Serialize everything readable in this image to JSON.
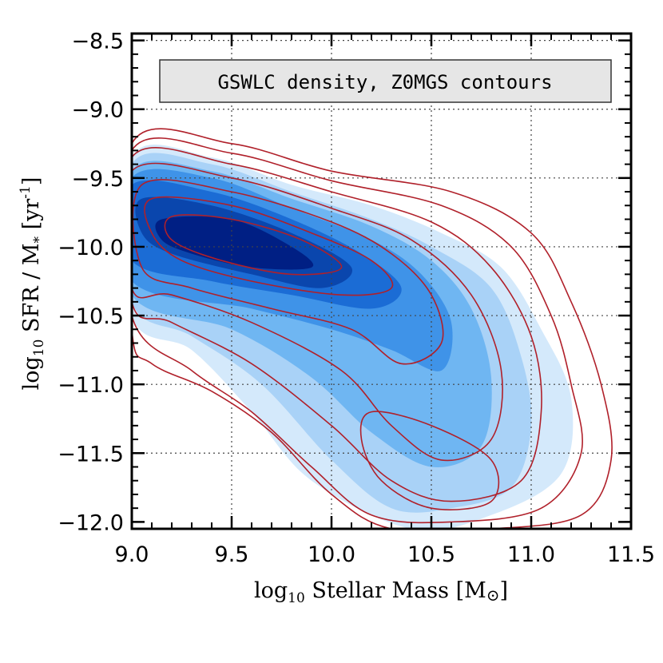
{
  "chart_data": {
    "type": "density-contour",
    "title": "",
    "legend_box": {
      "label": "GSWLC density, Z0MGS contours",
      "placement": "top-center"
    },
    "xlabel": {
      "prefix": "log",
      "sub": "10",
      "rest": " Stellar Mass [M",
      "sym": "⊙",
      "close": "]"
    },
    "ylabel": {
      "prefix": "log",
      "sub": "10",
      "rest": " SFR / M",
      "star": "*",
      "rest2": " [yr",
      "sup": "-1",
      "close": "]"
    },
    "xlim": [
      9.0,
      11.5
    ],
    "ylim": [
      -12.05,
      -8.45
    ],
    "xticks": [
      9.0,
      9.5,
      10.0,
      10.5,
      11.0,
      11.5
    ],
    "xtick_labels": [
      "9.0",
      "9.5",
      "10.0",
      "10.5",
      "11.0",
      "11.5"
    ],
    "yticks": [
      -12.0,
      -11.5,
      -11.0,
      -10.5,
      -10.0,
      -9.5,
      -9.0,
      -8.5
    ],
    "ytick_labels": [
      "−12.0",
      "−11.5",
      "−11.0",
      "−10.5",
      "−10.0",
      "−9.5",
      "−9.0",
      "−8.5"
    ],
    "grid": true,
    "density_colors": [
      "#d4e9fb",
      "#a9d2f7",
      "#6fb6f2",
      "#3f93e8",
      "#1b6cd5",
      "#0a46ad",
      "#001f84"
    ],
    "contour_color": "#b0202a",
    "density_levels": [
      [
        [
          9.0,
          -9.35
        ],
        [
          9.4,
          -9.35
        ],
        [
          9.8,
          -9.55
        ],
        [
          10.2,
          -9.7
        ],
        [
          10.55,
          -9.9
        ],
        [
          10.85,
          -10.15
        ],
        [
          11.05,
          -10.6
        ],
        [
          11.2,
          -11.1
        ],
        [
          11.15,
          -11.65
        ],
        [
          10.8,
          -11.95
        ],
        [
          10.4,
          -12.05
        ],
        [
          9.9,
          -11.7
        ],
        [
          9.6,
          -11.2
        ],
        [
          9.3,
          -10.75
        ],
        [
          9.0,
          -10.5
        ]
      ],
      [
        [
          9.0,
          -9.4
        ],
        [
          9.4,
          -9.4
        ],
        [
          9.8,
          -9.6
        ],
        [
          10.2,
          -9.8
        ],
        [
          10.5,
          -10.0
        ],
        [
          10.8,
          -10.3
        ],
        [
          10.95,
          -10.8
        ],
        [
          11.0,
          -11.3
        ],
        [
          10.9,
          -11.75
        ],
        [
          10.6,
          -11.9
        ],
        [
          10.3,
          -11.9
        ],
        [
          10.0,
          -11.55
        ],
        [
          9.65,
          -11.0
        ],
        [
          9.3,
          -10.65
        ],
        [
          9.0,
          -10.4
        ]
      ],
      [
        [
          9.0,
          -9.45
        ],
        [
          9.4,
          -9.45
        ],
        [
          9.8,
          -9.65
        ],
        [
          10.2,
          -9.85
        ],
        [
          10.5,
          -10.1
        ],
        [
          10.7,
          -10.45
        ],
        [
          10.8,
          -10.95
        ],
        [
          10.75,
          -11.45
        ],
        [
          10.5,
          -11.6
        ],
        [
          10.2,
          -11.35
        ],
        [
          9.9,
          -10.95
        ],
        [
          9.5,
          -10.6
        ],
        [
          9.0,
          -10.35
        ]
      ],
      [
        [
          9.0,
          -9.5
        ],
        [
          9.4,
          -9.5
        ],
        [
          9.8,
          -9.72
        ],
        [
          10.2,
          -9.95
        ],
        [
          10.45,
          -10.2
        ],
        [
          10.6,
          -10.55
        ],
        [
          10.55,
          -10.9
        ],
        [
          10.3,
          -10.75
        ],
        [
          10.0,
          -10.6
        ],
        [
          9.6,
          -10.45
        ],
        [
          9.0,
          -10.25
        ]
      ],
      [
        [
          9.0,
          -9.55
        ],
        [
          9.4,
          -9.6
        ],
        [
          9.8,
          -9.8
        ],
        [
          10.15,
          -10.05
        ],
        [
          10.35,
          -10.3
        ],
        [
          10.2,
          -10.45
        ],
        [
          9.8,
          -10.35
        ],
        [
          9.4,
          -10.25
        ],
        [
          9.0,
          -10.1
        ]
      ],
      [
        [
          9.05,
          -9.65
        ],
        [
          9.4,
          -9.7
        ],
        [
          9.8,
          -9.9
        ],
        [
          10.1,
          -10.15
        ],
        [
          9.95,
          -10.3
        ],
        [
          9.6,
          -10.2
        ],
        [
          9.2,
          -10.05
        ],
        [
          9.05,
          -9.9
        ]
      ],
      [
        [
          9.15,
          -9.8
        ],
        [
          9.5,
          -9.8
        ],
        [
          9.8,
          -10.0
        ],
        [
          9.9,
          -10.15
        ],
        [
          9.6,
          -10.15
        ],
        [
          9.3,
          -10.05
        ],
        [
          9.15,
          -9.95
        ]
      ]
    ],
    "contours": [
      [
        [
          9.0,
          -9.25
        ],
        [
          9.5,
          -9.25
        ],
        [
          10.0,
          -9.45
        ],
        [
          10.6,
          -9.6
        ],
        [
          11.0,
          -9.9
        ],
        [
          11.2,
          -10.4
        ],
        [
          11.35,
          -11.0
        ],
        [
          11.4,
          -11.55
        ],
        [
          11.25,
          -11.95
        ],
        [
          10.8,
          -12.05
        ],
        [
          10.3,
          -12.05
        ],
        [
          10.0,
          -11.8
        ],
        [
          9.7,
          -11.35
        ],
        [
          9.4,
          -11.05
        ],
        [
          9.1,
          -10.85
        ],
        [
          9.0,
          -10.6
        ]
      ],
      [
        [
          9.0,
          -9.3
        ],
        [
          9.5,
          -9.32
        ],
        [
          10.0,
          -9.52
        ],
        [
          10.55,
          -9.7
        ],
        [
          10.9,
          -10.0
        ],
        [
          11.1,
          -10.5
        ],
        [
          11.2,
          -11.0
        ],
        [
          11.25,
          -11.5
        ],
        [
          11.05,
          -11.9
        ],
        [
          10.6,
          -12.0
        ],
        [
          10.2,
          -11.95
        ],
        [
          9.9,
          -11.6
        ],
        [
          9.6,
          -11.2
        ],
        [
          9.3,
          -10.9
        ],
        [
          9.0,
          -10.5
        ]
      ],
      [
        [
          9.0,
          -9.35
        ],
        [
          9.5,
          -9.4
        ],
        [
          10.0,
          -9.6
        ],
        [
          10.5,
          -9.82
        ],
        [
          10.8,
          -10.15
        ],
        [
          11.0,
          -10.65
        ],
        [
          11.05,
          -11.2
        ],
        [
          10.95,
          -11.7
        ],
        [
          10.6,
          -11.85
        ],
        [
          10.3,
          -11.7
        ],
        [
          10.0,
          -11.3
        ],
        [
          9.6,
          -10.85
        ],
        [
          9.2,
          -10.55
        ],
        [
          9.0,
          -10.4
        ]
      ],
      [
        [
          9.0,
          -9.45
        ],
        [
          9.5,
          -9.5
        ],
        [
          10.0,
          -9.72
        ],
        [
          10.4,
          -9.95
        ],
        [
          10.7,
          -10.35
        ],
        [
          10.85,
          -10.9
        ],
        [
          10.8,
          -11.4
        ],
        [
          10.55,
          -11.55
        ],
        [
          10.3,
          -11.3
        ],
        [
          10.05,
          -10.9
        ],
        [
          9.6,
          -10.55
        ],
        [
          9.2,
          -10.35
        ],
        [
          9.0,
          -10.3
        ]
      ],
      [
        [
          9.05,
          -9.55
        ],
        [
          9.5,
          -9.6
        ],
        [
          10.0,
          -9.82
        ],
        [
          10.3,
          -10.05
        ],
        [
          10.5,
          -10.35
        ],
        [
          10.55,
          -10.7
        ],
        [
          10.35,
          -10.85
        ],
        [
          10.1,
          -10.6
        ],
        [
          9.7,
          -10.45
        ],
        [
          9.3,
          -10.3
        ],
        [
          9.05,
          -10.15
        ]
      ],
      [
        [
          9.1,
          -9.65
        ],
        [
          9.5,
          -9.7
        ],
        [
          9.9,
          -9.9
        ],
        [
          10.2,
          -10.1
        ],
        [
          10.3,
          -10.3
        ],
        [
          10.05,
          -10.35
        ],
        [
          9.6,
          -10.25
        ],
        [
          9.25,
          -10.1
        ],
        [
          9.1,
          -9.9
        ]
      ],
      [
        [
          9.2,
          -9.78
        ],
        [
          9.5,
          -9.8
        ],
        [
          9.85,
          -9.95
        ],
        [
          10.05,
          -10.15
        ],
        [
          9.8,
          -10.2
        ],
        [
          9.45,
          -10.1
        ],
        [
          9.2,
          -9.95
        ]
      ],
      [
        [
          10.2,
          -11.2
        ],
        [
          10.5,
          -11.3
        ],
        [
          10.8,
          -11.55
        ],
        [
          10.8,
          -11.85
        ],
        [
          10.5,
          -11.9
        ],
        [
          10.25,
          -11.7
        ],
        [
          10.15,
          -11.4
        ]
      ]
    ]
  }
}
